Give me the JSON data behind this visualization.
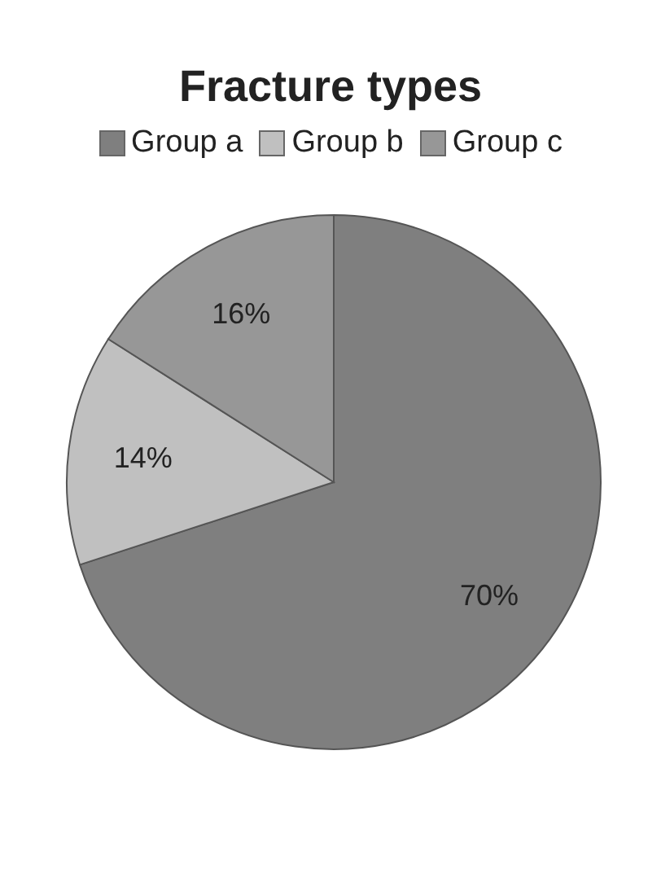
{
  "chart_data": {
    "type": "pie",
    "title": "Fracture types",
    "categories": [
      "Group a",
      "Group b",
      "Group c"
    ],
    "values": [
      70,
      14,
      16
    ],
    "colors": [
      "#7f7f7f",
      "#c0c0c0",
      "#979797"
    ],
    "value_labels": [
      "70%",
      "14%",
      "16%"
    ],
    "legend": "top"
  }
}
